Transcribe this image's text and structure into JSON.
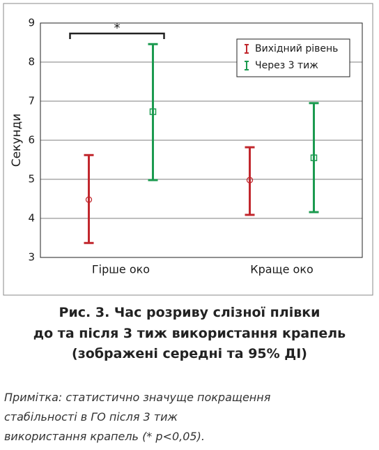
{
  "chart_data": {
    "type": "errorbar",
    "ylabel": "Секунди",
    "categories": [
      "Гірше око",
      "Краще око"
    ],
    "series": [
      {
        "name": "Вихідний рівень",
        "color": "#c1272d",
        "marker": "circle",
        "values": [
          4.48,
          4.98
        ],
        "low": [
          3.37,
          4.09
        ],
        "high": [
          5.62,
          5.82
        ]
      },
      {
        "name": "Через 3 тиж",
        "color": "#1b9a4f",
        "marker": "square",
        "values": [
          6.73,
          5.55
        ],
        "low": [
          4.98,
          4.16
        ],
        "high": [
          8.46,
          6.95
        ]
      }
    ],
    "ylim": [
      3,
      9
    ],
    "yticks": [
      3,
      4,
      5,
      6,
      7,
      8,
      9
    ],
    "grid": true,
    "significance": "*",
    "caption": [
      "Рис. 3. Час розриву слізної плівки",
      "до та після 3 тиж використання крапель",
      "(зображені середні та 95% ДІ)"
    ],
    "note": [
      "Примітка: статистично значуще покращення",
      "стабільності в ГО після 3 тиж",
      "використання крапель (* p<0,05)."
    ]
  }
}
